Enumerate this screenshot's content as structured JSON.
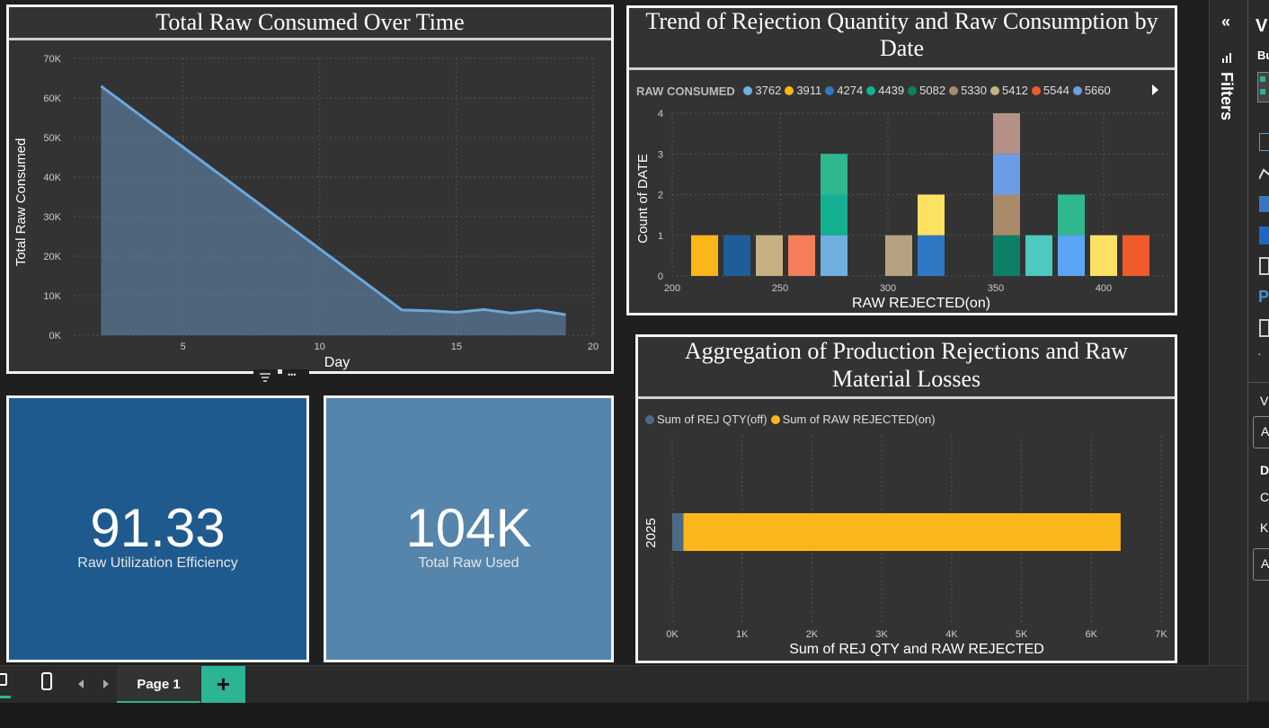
{
  "charts": {
    "line": {
      "title": "Total Raw Consumed Over Time",
      "xlabel": "Day",
      "ylabel": "Total Raw Consumed",
      "yticks": [
        "0K",
        "10K",
        "20K",
        "30K",
        "40K",
        "50K",
        "60K",
        "70K"
      ],
      "xticks": [
        "5",
        "10",
        "15",
        "20"
      ]
    },
    "trend": {
      "title_line1": "Trend of Rejection Quantity and Raw Consumption by",
      "title_line2": "Date",
      "legend_title": "RAW CONSUMED",
      "xlabel": "RAW REJECTED(on)",
      "ylabel": "Count of DATE",
      "yticks": [
        "0",
        "1",
        "2",
        "3",
        "4"
      ],
      "xticks": [
        "200",
        "250",
        "300",
        "350",
        "400"
      ]
    },
    "agg": {
      "title_line1": "Aggregation of Production Rejections and Raw",
      "title_line2": "Material Losses",
      "xlabel": "Sum of REJ QTY and RAW REJECTED",
      "category": "2025",
      "xticks": [
        "0K",
        "1K",
        "2K",
        "3K",
        "4K",
        "5K",
        "6K",
        "7K"
      ]
    }
  },
  "chart_data": [
    {
      "type": "area",
      "title": "Total Raw Consumed Over Time",
      "xlabel": "Day",
      "ylabel": "Total Raw Consumed",
      "xlim": [
        1,
        20
      ],
      "ylim": [
        0,
        70000
      ],
      "x": [
        2,
        13,
        14,
        15,
        16,
        17,
        18,
        19
      ],
      "values": [
        63000,
        6400,
        6200,
        5800,
        6500,
        5600,
        6300,
        5200
      ],
      "color": "#6aa8de"
    },
    {
      "type": "bar",
      "stacked": true,
      "title": "Trend of Rejection Quantity and Raw Consumption by Date",
      "xlabel": "RAW REJECTED(on)",
      "ylabel": "Count of DATE",
      "ylim": [
        0,
        4
      ],
      "legend_title": "RAW CONSUMED",
      "legend_position": "top-left",
      "legend": [
        {
          "name": "3762",
          "color": "#6fb0e0"
        },
        {
          "name": "3911",
          "color": "#fbb619"
        },
        {
          "name": "4274",
          "color": "#2f78c4"
        },
        {
          "name": "4439",
          "color": "#14b092"
        },
        {
          "name": "5082",
          "color": "#0f8068"
        },
        {
          "name": "5330",
          "color": "#a98a6a"
        },
        {
          "name": "5412",
          "color": "#c6b183"
        },
        {
          "name": "5544",
          "color": "#f15a2b"
        },
        {
          "name": "5660",
          "color": "#6a9de6"
        }
      ],
      "bars": [
        {
          "x": 215,
          "segments": [
            {
              "value": 1,
              "color": "#fbb619"
            }
          ]
        },
        {
          "x": 230,
          "segments": [
            {
              "value": 1,
              "color": "#1f5d99"
            }
          ]
        },
        {
          "x": 245,
          "segments": [
            {
              "value": 1,
              "color": "#c6b183"
            }
          ]
        },
        {
          "x": 260,
          "segments": [
            {
              "value": 1,
              "color": "#f47e5a"
            }
          ]
        },
        {
          "x": 275,
          "segments": [
            {
              "value": 1,
              "color": "#6fb0e0"
            },
            {
              "value": 1,
              "color": "#14b092"
            },
            {
              "value": 1,
              "color": "#2fb88f"
            }
          ]
        },
        {
          "x": 305,
          "segments": [
            {
              "value": 1,
              "color": "#b6a282"
            }
          ]
        },
        {
          "x": 320,
          "segments": [
            {
              "value": 1,
              "color": "#2f78c4"
            },
            {
              "value": 1,
              "color": "#fde163"
            }
          ]
        },
        {
          "x": 355,
          "segments": [
            {
              "value": 1,
              "color": "#0f8068"
            },
            {
              "value": 1,
              "color": "#a98a6a"
            },
            {
              "value": 1,
              "color": "#6a9de6"
            },
            {
              "value": 1,
              "color": "#b49086"
            }
          ]
        },
        {
          "x": 370,
          "segments": [
            {
              "value": 1,
              "color": "#4cc9c0"
            }
          ]
        },
        {
          "x": 385,
          "segments": [
            {
              "value": 1,
              "color": "#5aa6f4"
            },
            {
              "value": 1,
              "color": "#2fb88f"
            }
          ]
        },
        {
          "x": 400,
          "segments": [
            {
              "value": 1,
              "color": "#fde163"
            }
          ]
        },
        {
          "x": 415,
          "segments": [
            {
              "value": 1,
              "color": "#f15a2b"
            }
          ]
        }
      ],
      "xlim": [
        200,
        430
      ]
    },
    {
      "type": "bar",
      "orientation": "horizontal",
      "stacked": true,
      "title": "Aggregation of Production Rejections and Raw Material Losses",
      "xlabel": "Sum of REJ QTY and RAW REJECTED",
      "categories": [
        "2025"
      ],
      "xlim": [
        0,
        7000
      ],
      "legend_position": "top-left",
      "series": [
        {
          "name": "Sum of REJ QTY(off)",
          "values": [
            160
          ],
          "color": "#4d6a85"
        },
        {
          "name": "Sum of RAW REJECTED(on)",
          "values": [
            6260
          ],
          "color": "#fbb619"
        }
      ]
    }
  ],
  "kpis": [
    {
      "value": "91.33",
      "label": "Raw Utilization Efficiency",
      "color": "#1f5a8e"
    },
    {
      "value": "104K",
      "label": "Total Raw Used",
      "color": "#5585ab"
    }
  ],
  "panes": {
    "filters_label": "Filters",
    "viz_header": "V",
    "viz_sub": "Bu",
    "viz_letters": [
      "V",
      "A",
      "D",
      "C",
      "K",
      "A"
    ]
  },
  "bottom": {
    "page_tab": "Page 1",
    "add_tab": "+"
  },
  "icons": {
    "collapse": "«",
    "filter_icon": "filter-icon",
    "more": "•••"
  }
}
